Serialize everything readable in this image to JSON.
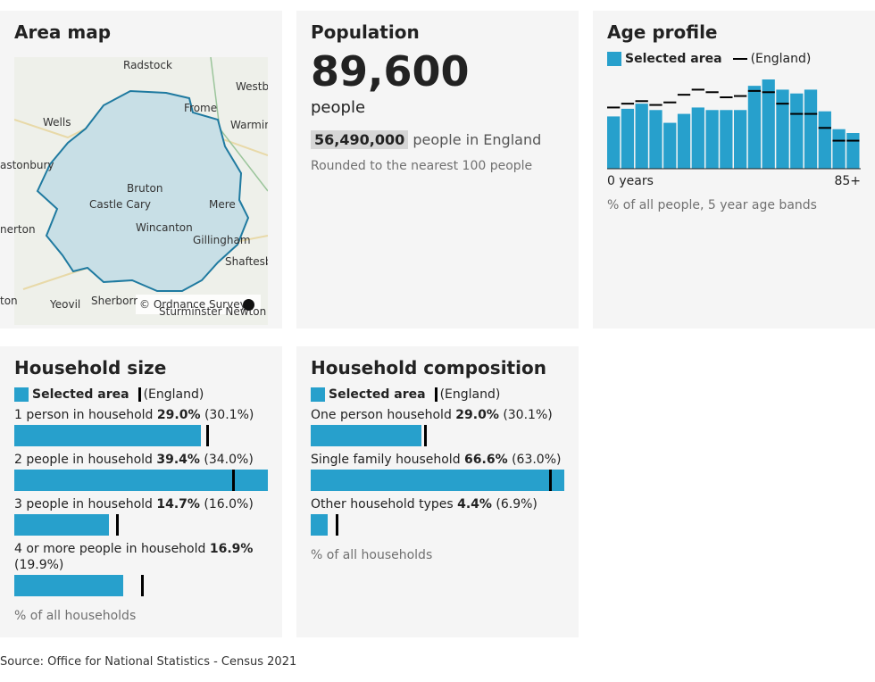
{
  "area_map": {
    "title": "Area map",
    "places": [
      "Radstock",
      "Westbu",
      "Frome",
      "Warmin",
      "Wells",
      "astonbury",
      "Bruton",
      "Castle Cary",
      "Mere",
      "Wincanton",
      "Gillingham",
      "nerton",
      "Shaftesbu",
      "ton",
      "Yeovil",
      "Sherborr",
      "Sturminster Newton"
    ],
    "attribution": "© Ordnance Survey"
  },
  "population": {
    "title": "Population",
    "value": "89,600",
    "unit": "people",
    "england_value": "56,490,000",
    "england_text": "people in England",
    "note": "Rounded to the nearest 100 people"
  },
  "age_profile": {
    "type": "bar",
    "title": "Age profile",
    "categories": [
      "0 years",
      null,
      null,
      null,
      null,
      null,
      null,
      null,
      null,
      null,
      null,
      null,
      null,
      null,
      null,
      null,
      null,
      "85+"
    ],
    "series": [
      {
        "name": "Selected area",
        "color": "#27a0cc",
        "values": [
          4.1,
          4.7,
          5.1,
          4.6,
          3.6,
          4.3,
          4.8,
          4.6,
          4.6,
          4.6,
          6.5,
          7.0,
          6.2,
          5.9,
          6.2,
          4.5,
          3.1,
          2.8
        ]
      },
      {
        "name": "(England)",
        "color": "#000000",
        "values": [
          4.8,
          5.1,
          5.3,
          5.0,
          5.2,
          5.8,
          6.2,
          6.0,
          5.6,
          5.7,
          6.1,
          6.0,
          5.1,
          4.3,
          4.3,
          3.2,
          2.2,
          2.2
        ]
      }
    ],
    "ylim": [
      0,
      7.0
    ],
    "note": "% of all people, 5 year age bands"
  },
  "household_size": {
    "type": "hbar",
    "title": "Household size",
    "legend": [
      "Selected area",
      "(England)"
    ],
    "categories": [
      "1 person in household",
      "2 people in household",
      "3 people in household",
      "4 or more people in household"
    ],
    "values": [
      29.0,
      39.4,
      14.7,
      16.9
    ],
    "value_labels": [
      "29.0%",
      "39.4%",
      "14.7%",
      "16.9%"
    ],
    "england_values": [
      30.1,
      34.0,
      16.0,
      19.9
    ],
    "england_labels": [
      "(30.1%)",
      "(34.0%)",
      "(16.0%)",
      "(19.9%)"
    ],
    "xlim": [
      0,
      39.4
    ],
    "color": "#27a0cc",
    "note": "% of all households"
  },
  "household_composition": {
    "type": "hbar",
    "title": "Household composition",
    "legend": [
      "Selected area",
      "(England)"
    ],
    "categories": [
      "One person household",
      "Single family household",
      "Other household types"
    ],
    "values": [
      29.0,
      66.6,
      4.4
    ],
    "value_labels": [
      "29.0%",
      "66.6%",
      "4.4%"
    ],
    "england_values": [
      30.1,
      63.0,
      6.9
    ],
    "england_labels": [
      "(30.1%)",
      "(63.0%)",
      "(6.9%)"
    ],
    "xlim": [
      0,
      66.6
    ],
    "color": "#27a0cc",
    "note": "% of all households"
  },
  "source": "Source: Office for National Statistics - Census 2021"
}
